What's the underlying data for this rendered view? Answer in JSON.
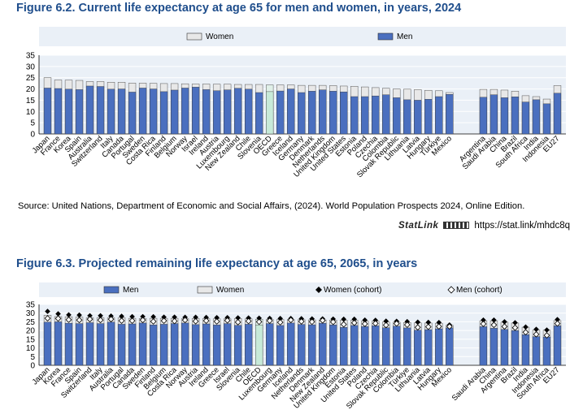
{
  "figure1": {
    "title": "Figure 6.2. Current life expectancy at age 65 for men and women, in years, 2024",
    "source": "Source: United Nations, Department of Economic and Social Affairs, (2024). World Population Prospects 2024, Online Edition.",
    "statlink_brand": "StatLink",
    "statlink_url": "https://stat.link/mhdc8q"
  },
  "figure2": {
    "title": "Figure 6.3. Projected remaining life expectancy at age 65, 2065, in years"
  },
  "colors": {
    "men": "#4a6fbf",
    "women": "#e8e8e8",
    "oecd": "#c8ead9",
    "title": "#1f4e8c",
    "plot_bg": "#eaf0f7",
    "gridline": "#ffffff"
  },
  "chart_data": [
    {
      "type": "bar",
      "title": "Figure 6.2. Current life expectancy at age 65 for men and women, in years, 2024",
      "xlabel": "",
      "ylabel": "",
      "ylim": [
        0,
        35
      ],
      "yticks": [
        0,
        5,
        10,
        15,
        20,
        25,
        30,
        35
      ],
      "legend": [
        "Women",
        "Men"
      ],
      "highlight": "OECD",
      "groups": [
        [
          "Japan",
          "France",
          "Korea",
          "Spain",
          "Australia",
          "Switzerland",
          "Italy",
          "Canada",
          "Portugal",
          "Sweden",
          "Costa Rica",
          "Finland",
          "Belgium",
          "Norway",
          "Israel",
          "Ireland",
          "Austria",
          "Luxembourg",
          "New Zealand",
          "Chile",
          "Slovenia",
          "OECD",
          "Greece",
          "Iceland",
          "Germany",
          "Denmark",
          "Netherlands",
          "United Kingdom",
          "United States",
          "Estonia",
          "Poland",
          "Czechia",
          "Colombia",
          "Slovak Republic",
          "Lithuania",
          "Latvia",
          "Hungary",
          "Türkiye",
          "Mexico"
        ],
        [
          "Argentina",
          "Saudi Arabia",
          "China",
          "Brazil",
          "South Africa",
          "India",
          "Indonesia",
          "EU27"
        ]
      ],
      "categories": [
        "Japan",
        "France",
        "Korea",
        "Spain",
        "Australia",
        "Switzerland",
        "Italy",
        "Canada",
        "Portugal",
        "Sweden",
        "Costa Rica",
        "Finland",
        "Belgium",
        "Norway",
        "Israel",
        "Ireland",
        "Austria",
        "Luxembourg",
        "New Zealand",
        "Chile",
        "Slovenia",
        "OECD",
        "Greece",
        "Iceland",
        "Germany",
        "Denmark",
        "Netherlands",
        "United Kingdom",
        "United States",
        "Estonia",
        "Poland",
        "Czechia",
        "Colombia",
        "Slovak Republic",
        "Lithuania",
        "Latvia",
        "Hungary",
        "Türkiye",
        "Mexico",
        "Argentina",
        "Saudi Arabia",
        "China",
        "Brazil",
        "South Africa",
        "India",
        "Indonesia",
        "EU27"
      ],
      "series": [
        {
          "name": "Women",
          "values": [
            25.0,
            24.0,
            23.9,
            23.8,
            23.3,
            23.3,
            23.0,
            23.0,
            22.6,
            22.6,
            22.5,
            22.4,
            22.4,
            22.3,
            22.2,
            22.2,
            22.1,
            22.1,
            22.0,
            22.0,
            22.0,
            21.8,
            21.8,
            21.8,
            21.6,
            21.6,
            21.6,
            21.5,
            21.3,
            21.2,
            20.9,
            20.6,
            20.3,
            20.0,
            19.9,
            19.7,
            19.4,
            19.2,
            18.4,
            19.8,
            19.8,
            19.5,
            19.0,
            17.0,
            16.6,
            15.5,
            21.5
          ]
        },
        {
          "name": "Men",
          "values": [
            20.4,
            20.2,
            19.9,
            19.7,
            21.3,
            21.1,
            19.9,
            20.0,
            18.6,
            20.4,
            20.0,
            18.8,
            19.5,
            20.4,
            20.8,
            19.7,
            19.2,
            19.6,
            20.3,
            19.9,
            18.4,
            18.8,
            19.1,
            20.0,
            18.4,
            19.0,
            19.6,
            19.0,
            18.7,
            16.6,
            16.6,
            16.9,
            17.4,
            16.1,
            15.2,
            15.0,
            15.4,
            16.6,
            17.6,
            16.3,
            17.4,
            16.1,
            16.5,
            14.2,
            15.2,
            13.4,
            18.1
          ]
        }
      ]
    },
    {
      "type": "bar",
      "title": "Figure 6.3. Projected remaining life expectancy at age 65, 2065, in years",
      "xlabel": "",
      "ylabel": "",
      "ylim": [
        0,
        35
      ],
      "yticks": [
        0,
        5,
        10,
        15,
        20,
        25,
        30,
        35
      ],
      "legend": [
        "Men",
        "Women",
        "Women (cohort)",
        "Men (cohort)"
      ],
      "highlight": "OECD",
      "groups": [
        [
          "Japan",
          "Korea",
          "France",
          "Spain",
          "Switzerland",
          "Italy",
          "Australia",
          "Portugal",
          "Canada",
          "Sweden",
          "Finland",
          "Belgium",
          "Costa Rica",
          "Norway",
          "Austria",
          "Ireland",
          "Greece",
          "Israel",
          "Slovenia",
          "Chile",
          "OECD",
          "Luxembourg",
          "Germany",
          "Iceland",
          "Netherlands",
          "Denmark",
          "New Zealand",
          "United Kingdom",
          "Estonia",
          "United States",
          "Poland",
          "Czechia",
          "Slovak Republic",
          "Colombia",
          "Türkiye",
          "Lithuania",
          "Latvia",
          "Hungary",
          "Mexico"
        ],
        [
          "Saudi Arabia",
          "China",
          "Argentina",
          "Brazil",
          "India",
          "Indonesia",
          "South Africa",
          "EU27"
        ]
      ],
      "categories": [
        "Japan",
        "Korea",
        "France",
        "Spain",
        "Switzerland",
        "Italy",
        "Australia",
        "Portugal",
        "Canada",
        "Sweden",
        "Finland",
        "Belgium",
        "Costa Rica",
        "Norway",
        "Austria",
        "Ireland",
        "Greece",
        "Israel",
        "Slovenia",
        "Chile",
        "OECD",
        "Luxembourg",
        "Germany",
        "Iceland",
        "Netherlands",
        "Denmark",
        "New Zealand",
        "United Kingdom",
        "Estonia",
        "United States",
        "Poland",
        "Czechia",
        "Slovak Republic",
        "Colombia",
        "Türkiye",
        "Lithuania",
        "Latvia",
        "Hungary",
        "Mexico",
        "Saudi Arabia",
        "China",
        "Argentina",
        "Brazil",
        "India",
        "Indonesia",
        "South Africa",
        "EU27"
      ],
      "series": [
        {
          "name": "Men",
          "values": [
            24.8,
            25.0,
            24.2,
            24.0,
            24.5,
            24.0,
            24.8,
            23.6,
            23.8,
            24.3,
            23.2,
            23.6,
            24.0,
            24.3,
            23.4,
            23.8,
            23.2,
            24.0,
            23.0,
            23.6,
            23.2,
            24.0,
            22.9,
            24.3,
            23.5,
            23.3,
            24.2,
            23.2,
            21.8,
            22.9,
            22.3,
            22.7,
            21.6,
            22.5,
            21.5,
            20.2,
            20.5,
            21.0,
            21.5,
            22.2,
            21.3,
            20.6,
            20.0,
            17.6,
            16.5,
            16.3,
            22.7
          ]
        },
        {
          "name": "Women",
          "values": [
            28.8,
            28.0,
            27.9,
            27.7,
            27.3,
            27.3,
            27.3,
            27.3,
            27.0,
            26.9,
            27.0,
            27.0,
            27.0,
            26.8,
            26.9,
            26.8,
            26.7,
            26.7,
            26.9,
            26.7,
            26.5,
            26.4,
            26.3,
            26.3,
            26.2,
            26.1,
            26.1,
            26.0,
            25.9,
            25.9,
            25.4,
            25.4,
            24.9,
            24.8,
            24.6,
            24.4,
            24.3,
            24.2,
            23.0,
            25.6,
            25.6,
            24.8,
            24.3,
            21.9,
            20.3,
            20.2,
            25.7
          ]
        },
        {
          "name": "Women (cohort)",
          "values": [
            31.0,
            29.6,
            29.0,
            28.9,
            28.5,
            28.5,
            28.3,
            28.2,
            28.0,
            28.0,
            27.9,
            27.7,
            27.7,
            27.6,
            27.6,
            27.5,
            27.4,
            27.4,
            27.3,
            27.2,
            27.1,
            27.0,
            26.9,
            26.9,
            26.8,
            26.7,
            26.7,
            26.6,
            26.5,
            26.5,
            26.0,
            25.9,
            25.4,
            25.3,
            25.1,
            24.8,
            24.7,
            24.6,
            23.2,
            26.0,
            26.0,
            25.0,
            24.5,
            22.0,
            20.7,
            20.3,
            26.3
          ]
        },
        {
          "name": "Men (cohort)",
          "values": [
            27.0,
            26.9,
            26.2,
            26.0,
            26.5,
            26.0,
            26.5,
            25.6,
            25.6,
            26.0,
            25.2,
            25.6,
            25.4,
            26.0,
            25.3,
            25.6,
            25.2,
            25.8,
            24.8,
            25.4,
            25.0,
            25.6,
            24.7,
            26.0,
            25.2,
            25.0,
            25.8,
            24.9,
            23.5,
            24.4,
            23.8,
            24.1,
            23.1,
            24.0,
            23.3,
            21.8,
            22.1,
            22.3,
            22.3,
            23.8,
            23.2,
            22.3,
            21.6,
            19.0,
            17.8,
            17.2,
            24.0
          ]
        }
      ]
    }
  ]
}
